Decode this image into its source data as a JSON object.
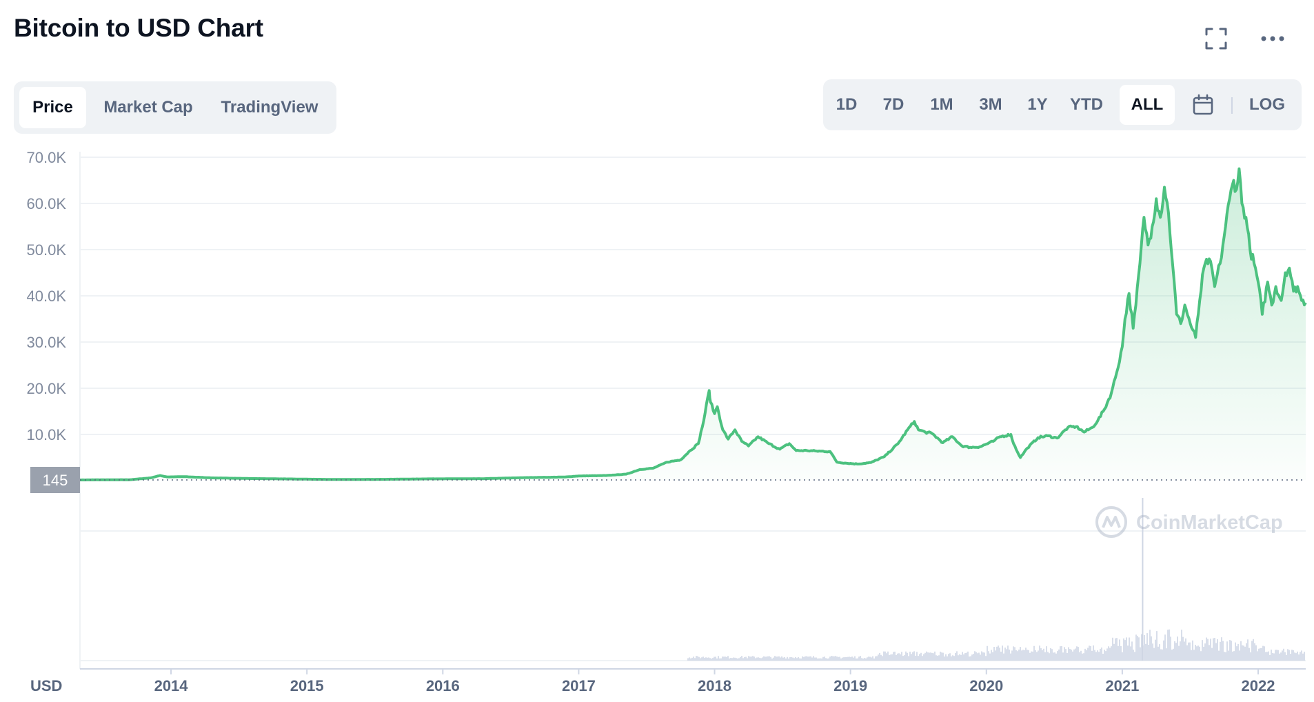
{
  "title": "Bitcoin to USD Chart",
  "tabs": [
    {
      "label": "Price",
      "active": true
    },
    {
      "label": "Market Cap",
      "active": false
    },
    {
      "label": "TradingView",
      "active": false
    }
  ],
  "ranges": [
    {
      "label": "1D",
      "active": false
    },
    {
      "label": "7D",
      "active": false
    },
    {
      "label": "1M",
      "active": false
    },
    {
      "label": "3M",
      "active": false
    },
    {
      "label": "1Y",
      "active": false
    },
    {
      "label": "YTD",
      "active": false
    },
    {
      "label": "ALL",
      "active": true
    }
  ],
  "log_label": "LOG",
  "icons": {
    "expand": "fullscreen-icon",
    "more": "more-options-icon",
    "calendar": "calendar-icon"
  },
  "watermark": "CoinMarketCap",
  "colors": {
    "line": "#4cc17f",
    "accent_text": "#58667e",
    "grid": "#eff2f5",
    "price_marker_bg": "#9aa1ad"
  },
  "chart_data": {
    "type": "area",
    "title": "Bitcoin to USD Chart",
    "currency_label": "USD",
    "y_tick_labels": [
      "70.0K",
      "60.0K",
      "50.0K",
      "40.0K",
      "30.0K",
      "20.0K",
      "10.0K"
    ],
    "y_ticks": [
      70000,
      60000,
      50000,
      40000,
      30000,
      20000,
      10000
    ],
    "ylim": [
      145,
      70000
    ],
    "x_tick_labels": [
      "2014",
      "2015",
      "2016",
      "2017",
      "2018",
      "2019",
      "2020",
      "2021",
      "2022"
    ],
    "x_ticks": [
      2014,
      2015,
      2016,
      2017,
      2018,
      2019,
      2020,
      2021,
      2022
    ],
    "xlim": [
      2013.33,
      2022.35
    ],
    "baseline_label": "145",
    "baseline_value": 145,
    "grid": true,
    "series": [
      {
        "x": [
          2013.33,
          2013.7,
          2013.85,
          2013.92,
          2013.97,
          2014.1,
          2014.3,
          2014.6,
          2014.9,
          2015.2,
          2015.5,
          2015.9,
          2016.3,
          2016.6,
          2016.9,
          2017.0,
          2017.2,
          2017.35,
          2017.45,
          2017.55,
          2017.65,
          2017.75,
          2017.82,
          2017.88,
          2017.92,
          2017.96,
          2017.97,
          2018.0,
          2018.02,
          2018.06,
          2018.1,
          2018.15,
          2018.2,
          2018.25,
          2018.32,
          2018.4,
          2018.48,
          2018.55,
          2018.6,
          2018.68,
          2018.75,
          2018.85,
          2018.9,
          2018.96,
          2019.05,
          2019.15,
          2019.25,
          2019.35,
          2019.42,
          2019.47,
          2019.5,
          2019.55,
          2019.6,
          2019.68,
          2019.75,
          2019.82,
          2019.88,
          2019.95,
          2020.05,
          2020.1,
          2020.18,
          2020.2,
          2020.25,
          2020.3,
          2020.38,
          2020.45,
          2020.52,
          2020.6,
          2020.66,
          2020.72,
          2020.78,
          2020.82,
          2020.87,
          2020.92,
          2020.96,
          2021.0,
          2021.02,
          2021.05,
          2021.08,
          2021.1,
          2021.13,
          2021.16,
          2021.19,
          2021.22,
          2021.25,
          2021.28,
          2021.31,
          2021.34,
          2021.37,
          2021.4,
          2021.43,
          2021.46,
          2021.5,
          2021.54,
          2021.57,
          2021.6,
          2021.64,
          2021.68,
          2021.72,
          2021.76,
          2021.79,
          2021.82,
          2021.84,
          2021.86,
          2021.88,
          2021.91,
          2021.94,
          2021.97,
          2022.0,
          2022.03,
          2022.07,
          2022.1,
          2022.13,
          2022.17,
          2022.2,
          2022.23,
          2022.26,
          2022.29,
          2022.32,
          2022.35
        ],
        "y": [
          150,
          200,
          600,
          1100,
          800,
          850,
          600,
          450,
          350,
          250,
          270,
          380,
          420,
          650,
          780,
          1000,
          1100,
          1400,
          2400,
          2700,
          4000,
          4500,
          6500,
          8000,
          13000,
          19500,
          17000,
          14500,
          16000,
          11000,
          9000,
          11000,
          8500,
          7500,
          9500,
          8000,
          6800,
          8000,
          6500,
          6500,
          6400,
          6300,
          4000,
          3800,
          3600,
          3900,
          5200,
          8000,
          11000,
          12800,
          11000,
          10500,
          10200,
          8200,
          9500,
          7500,
          7200,
          7300,
          8500,
          9500,
          10000,
          8000,
          5000,
          7000,
          9300,
          9700,
          9200,
          11500,
          11700,
          10500,
          11500,
          13000,
          15500,
          19000,
          23500,
          29000,
          35000,
          40500,
          33000,
          38000,
          47000,
          57000,
          51000,
          55000,
          61000,
          57000,
          63500,
          58000,
          47000,
          36000,
          34000,
          38000,
          34000,
          31000,
          39000,
          46000,
          48000,
          42000,
          47000,
          55000,
          61000,
          65000,
          63000,
          67500,
          60000,
          57000,
          50000,
          47000,
          43000,
          36000,
          43000,
          38000,
          42000,
          39000,
          45000,
          46000,
          41000,
          42000,
          39000,
          38500
        ]
      }
    ],
    "volume_bars": true
  }
}
